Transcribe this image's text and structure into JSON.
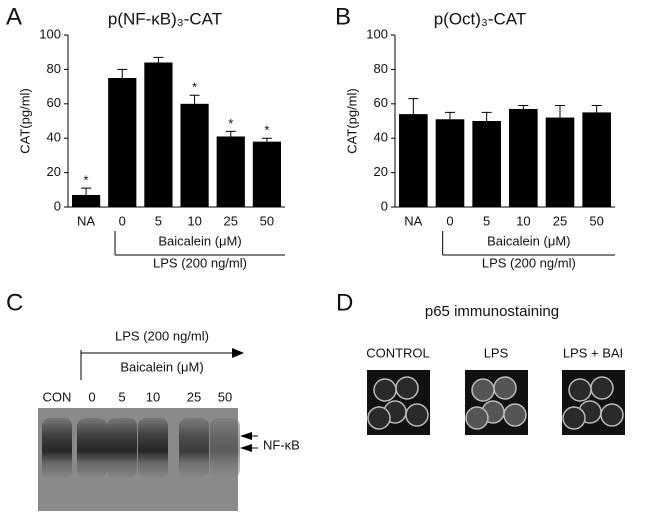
{
  "chart_data": [
    {
      "type": "bar",
      "panel": "A",
      "title": "p(NF-κB)₃-CAT",
      "y_label": "CAT(pg/ml)",
      "categories": [
        "NA",
        "0",
        "5",
        "10",
        "25",
        "50"
      ],
      "values": [
        7,
        75,
        84,
        60,
        41,
        38
      ],
      "errors": [
        4,
        5,
        3,
        5,
        3,
        2
      ],
      "annotations": [
        "*",
        null,
        null,
        "*",
        "*",
        "*"
      ],
      "color": "#000000",
      "ylim": [
        0,
        100
      ],
      "yticks": [
        0,
        20,
        40,
        60,
        80,
        100
      ],
      "group_labels": [
        "Baicalein (μM)",
        "LPS (200 ng/ml)"
      ]
    },
    {
      "type": "bar",
      "panel": "B",
      "title": "p(Oct)₃-CAT",
      "y_label": "CAT(pg/ml)",
      "categories": [
        "NA",
        "0",
        "5",
        "10",
        "25",
        "50"
      ],
      "values": [
        54,
        51,
        50,
        57,
        52,
        55
      ],
      "errors": [
        9,
        4,
        5,
        2,
        7,
        4
      ],
      "annotations": [
        null,
        null,
        null,
        null,
        null,
        null
      ],
      "color": "#000000",
      "ylim": [
        0,
        100
      ],
      "yticks": [
        0,
        20,
        40,
        60,
        80,
        100
      ],
      "group_labels": [
        "Baicalein (μM)",
        "LPS (200 ng/ml)"
      ]
    }
  ],
  "gel": {
    "panel": "C",
    "treatment": "LPS (200 ng/ml)",
    "gradient": "Baicalein (μM)",
    "lanes": [
      "CON",
      "0",
      "5",
      "10",
      "25",
      "50"
    ],
    "band_label": "NF-κB"
  },
  "immunostaining": {
    "panel": "D",
    "title": "p65 immunostaining",
    "images": [
      "CONTROL",
      "LPS",
      "LPS + BAI"
    ]
  }
}
